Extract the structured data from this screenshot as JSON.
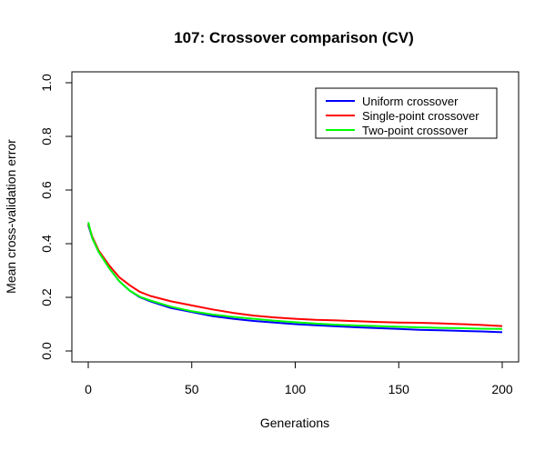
{
  "chart_data": {
    "type": "line",
    "title": "107: Crossover comparison (CV)",
    "xlabel": "Generations",
    "ylabel": "Mean cross-validation error",
    "xlim": [
      0,
      200
    ],
    "ylim": [
      0,
      1.0
    ],
    "x_ticks": [
      "0",
      "50",
      "100",
      "150",
      "200"
    ],
    "y_ticks": [
      "0.0",
      "0.2",
      "0.4",
      "0.6",
      "0.8",
      "1.0"
    ],
    "x_tick_values": [
      0,
      50,
      100,
      150,
      200
    ],
    "y_tick_values": [
      0,
      0.2,
      0.4,
      0.6,
      0.8,
      1.0
    ],
    "legend_position": "top-right",
    "grid": false,
    "x": [
      0,
      2,
      5,
      10,
      15,
      20,
      25,
      30,
      40,
      50,
      60,
      70,
      80,
      90,
      100,
      110,
      120,
      130,
      140,
      150,
      160,
      170,
      180,
      190,
      200
    ],
    "series": [
      {
        "name": "Uniform crossover",
        "color": "#0000ff",
        "values": [
          0.47,
          0.42,
          0.37,
          0.31,
          0.26,
          0.225,
          0.2,
          0.185,
          0.16,
          0.145,
          0.13,
          0.12,
          0.112,
          0.106,
          0.1,
          0.096,
          0.092,
          0.088,
          0.085,
          0.082,
          0.079,
          0.077,
          0.075,
          0.073,
          0.07
        ]
      },
      {
        "name": "Single-point crossover",
        "color": "#ff0000",
        "values": [
          0.475,
          0.425,
          0.375,
          0.32,
          0.275,
          0.245,
          0.22,
          0.205,
          0.185,
          0.17,
          0.155,
          0.142,
          0.132,
          0.125,
          0.12,
          0.116,
          0.114,
          0.111,
          0.108,
          0.106,
          0.105,
          0.103,
          0.1,
          0.097,
          0.093
        ]
      },
      {
        "name": "Two-point crossover",
        "color": "#00ff00",
        "values": [
          0.48,
          0.42,
          0.37,
          0.31,
          0.26,
          0.225,
          0.202,
          0.188,
          0.165,
          0.148,
          0.136,
          0.127,
          0.12,
          0.113,
          0.107,
          0.102,
          0.098,
          0.095,
          0.093,
          0.09,
          0.088,
          0.086,
          0.085,
          0.083,
          0.082
        ]
      }
    ]
  }
}
